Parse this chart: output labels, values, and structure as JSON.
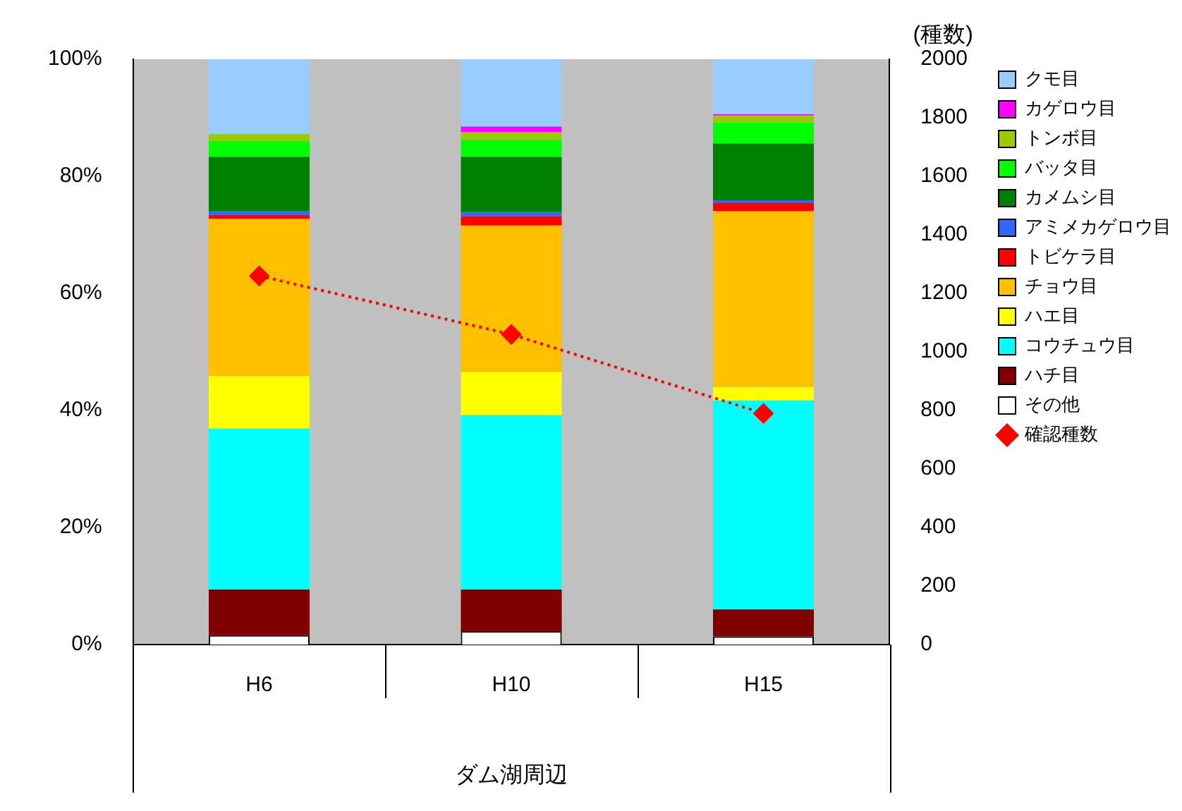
{
  "chart_data": {
    "type": "bar",
    "stacked": true,
    "xlabel": "ダム湖周辺",
    "y2label": "(種数)",
    "categories": [
      "H6",
      "H10",
      "H15"
    ],
    "series": [
      {
        "name": "その他",
        "color": "#ffffff",
        "values": [
          1.6,
          2.3,
          1.4
        ]
      },
      {
        "name": "ハチ目",
        "color": "#800000",
        "values": [
          7.8,
          7.1,
          4.6
        ]
      },
      {
        "name": "コウチュウ目",
        "color": "#00ffff",
        "values": [
          27.5,
          29.8,
          35.7
        ]
      },
      {
        "name": "ハエ目",
        "color": "#ffff00",
        "values": [
          9.0,
          7.4,
          2.3
        ]
      },
      {
        "name": "チョウ目",
        "color": "#ffc000",
        "values": [
          26.8,
          25.0,
          30.1
        ]
      },
      {
        "name": "トビケラ目",
        "color": "#ff0000",
        "values": [
          0.7,
          1.6,
          1.4
        ]
      },
      {
        "name": "アミメカゲロウ目",
        "color": "#3366ff",
        "values": [
          0.7,
          0.7,
          0.4
        ]
      },
      {
        "name": "カメムシ目",
        "color": "#008000",
        "values": [
          9.2,
          9.4,
          9.7
        ]
      },
      {
        "name": "バッタ目",
        "color": "#00ff00",
        "values": [
          2.7,
          2.9,
          3.6
        ]
      },
      {
        "name": "トンボ目",
        "color": "#99cc00",
        "values": [
          1.2,
          1.4,
          1.2
        ]
      },
      {
        "name": "カゲロウ目",
        "color": "#ff00ff",
        "values": [
          0,
          0.9,
          0.2
        ]
      },
      {
        "name": "クモ目",
        "color": "#99ccff",
        "values": [
          12.8,
          11.5,
          9.4
        ]
      },
      {
        "name": "確認種数",
        "type": "line",
        "axis": "y2",
        "color": "#ff0000",
        "marker": "diamond",
        "line_style": "dotted",
        "values": [
          1260,
          1060,
          790
        ]
      }
    ],
    "ylim": [
      0,
      100
    ],
    "yticks": [
      {
        "value": 0,
        "label": "0%"
      },
      {
        "value": 20,
        "label": "20%"
      },
      {
        "value": 40,
        "label": "40%"
      },
      {
        "value": 60,
        "label": "60%"
      },
      {
        "value": 80,
        "label": "80%"
      },
      {
        "value": 100,
        "label": "100%"
      }
    ],
    "y2lim": [
      0,
      2000
    ],
    "y2ticks": [
      0,
      200,
      400,
      600,
      800,
      1000,
      1200,
      1400,
      1600,
      1800,
      2000
    ],
    "legend": "right",
    "grid": false
  }
}
